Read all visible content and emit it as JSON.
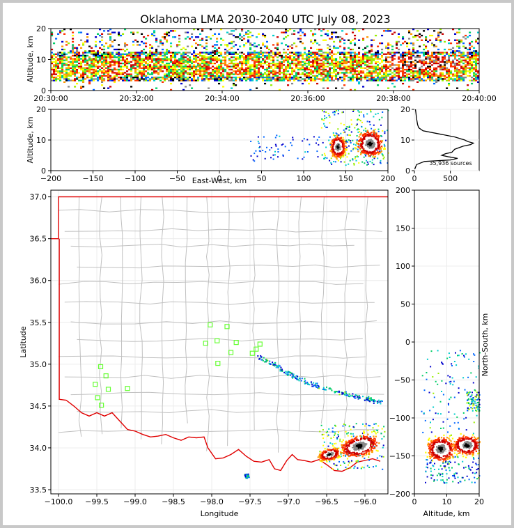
{
  "title": "Oklahoma LMA 2030-2040 UTC July 08, 2023",
  "colors": {
    "state_border": "#e00000",
    "county_lines": "#c0c0c0",
    "stations": "#66ff33",
    "source_scale": [
      "#0000cc",
      "#0066ff",
      "#00cccc",
      "#00cc66",
      "#99ee00",
      "#ffff00",
      "#ff9900",
      "#ff3300",
      "#cc0000",
      "#ffffff",
      "#888888",
      "#000000"
    ]
  },
  "chart_data": [
    {
      "id": "time_height",
      "type": "heatmap",
      "xlabel": "",
      "ylabel": "Altitude, km",
      "x_ticks": [
        "20:30:00",
        "20:32:00",
        "20:34:00",
        "20:36:00",
        "20:38:00",
        "20:40:00"
      ],
      "x_minutes": [
        0,
        2,
        4,
        6,
        8,
        10
      ],
      "xlim_minutes": [
        0,
        10
      ],
      "ylim": [
        0,
        20
      ],
      "y_ticks": [
        0,
        10,
        20
      ],
      "core_altitude_km": [
        3,
        12
      ],
      "sparse_to_km": 20
    },
    {
      "id": "ew_altitude",
      "type": "heatmap",
      "xlabel": "East-West, km",
      "ylabel": "Altitude, km",
      "xlim": [
        -200,
        200
      ],
      "x_ticks": [
        -200,
        -150,
        -100,
        -50,
        0,
        50,
        100,
        150,
        200
      ],
      "ylim": [
        0,
        20
      ],
      "y_ticks": [
        0,
        10,
        20
      ],
      "cores": [
        {
          "x": 178,
          "y": 9,
          "sx": 12,
          "sy": 3
        },
        {
          "x": 140,
          "y": 8,
          "sx": 7,
          "sy": 2.5
        }
      ],
      "trail_x_range": [
        35,
        120
      ]
    },
    {
      "id": "altitude_histogram",
      "type": "line",
      "annotation": "35,936 sources",
      "xlim": [
        0,
        900
      ],
      "x_ticks": [
        0,
        500
      ],
      "ylim": [
        0,
        20
      ],
      "y_ticks": [
        0,
        10,
        20
      ],
      "profile": [
        {
          "alt": 0.5,
          "count": 5
        },
        {
          "alt": 2,
          "count": 30
        },
        {
          "alt": 3,
          "count": 140
        },
        {
          "alt": 3.5,
          "count": 500
        },
        {
          "alt": 4,
          "count": 600
        },
        {
          "alt": 4.5,
          "count": 480
        },
        {
          "alt": 5,
          "count": 380
        },
        {
          "alt": 5.5,
          "count": 430
        },
        {
          "alt": 6,
          "count": 520
        },
        {
          "alt": 7,
          "count": 560
        },
        {
          "alt": 8,
          "count": 680
        },
        {
          "alt": 8.5,
          "count": 780
        },
        {
          "alt": 9,
          "count": 820
        },
        {
          "alt": 9.5,
          "count": 740
        },
        {
          "alt": 10,
          "count": 700
        },
        {
          "alt": 11,
          "count": 560
        },
        {
          "alt": 12,
          "count": 340
        },
        {
          "alt": 13,
          "count": 120
        },
        {
          "alt": 14,
          "count": 60
        },
        {
          "alt": 15,
          "count": 45
        },
        {
          "alt": 17,
          "count": 30
        },
        {
          "alt": 19,
          "count": 20
        },
        {
          "alt": 20,
          "count": 15
        }
      ]
    },
    {
      "id": "map",
      "type": "scatter",
      "xlabel": "Longitude",
      "ylabel": "Latitude",
      "xlim": [
        -100.1,
        -95.7
      ],
      "x_ticks": [
        -100.0,
        -99.5,
        -99.0,
        -98.5,
        -98.0,
        -97.5,
        -97.0,
        -96.5,
        -96.0
      ],
      "x_tick_labels": [
        "−100.0",
        "−99.5",
        "−99.0",
        "−98.5",
        "−98.0",
        "−97.5",
        "−97.0",
        "−96.5",
        "−96.0"
      ],
      "ylim": [
        33.45,
        37.08
      ],
      "y_ticks": [
        33.5,
        34.0,
        34.5,
        35.0,
        35.5,
        36.0,
        36.5,
        37.0
      ],
      "y_tick_labels": [
        "33.5",
        "34.0",
        "34.5",
        "35.0",
        "35.5",
        "36.0",
        "36.5",
        "37.0"
      ],
      "stations": [
        {
          "lon": -99.45,
          "lat": 34.97
        },
        {
          "lon": -99.38,
          "lat": 34.86
        },
        {
          "lon": -99.52,
          "lat": 34.76
        },
        {
          "lon": -99.35,
          "lat": 34.7
        },
        {
          "lon": -99.1,
          "lat": 34.71
        },
        {
          "lon": -99.49,
          "lat": 34.6
        },
        {
          "lon": -99.44,
          "lat": 34.51
        },
        {
          "lon": -98.02,
          "lat": 35.47
        },
        {
          "lon": -97.8,
          "lat": 35.45
        },
        {
          "lon": -98.08,
          "lat": 35.25
        },
        {
          "lon": -97.93,
          "lat": 35.28
        },
        {
          "lon": -97.68,
          "lat": 35.26
        },
        {
          "lon": -97.37,
          "lat": 35.24
        },
        {
          "lon": -97.42,
          "lat": 35.18
        },
        {
          "lon": -97.75,
          "lat": 35.14
        },
        {
          "lon": -97.47,
          "lat": 35.13
        },
        {
          "lon": -97.92,
          "lat": 35.01
        }
      ],
      "cores": [
        {
          "lon": -96.08,
          "lat": 34.03,
          "s": 0.13
        },
        {
          "lon": -96.47,
          "lat": 33.93,
          "s": 0.07
        }
      ],
      "trail": [
        [
          -97.4,
          35.1
        ],
        [
          -97.1,
          34.95
        ],
        [
          -96.8,
          34.8
        ],
        [
          -96.4,
          34.68
        ],
        [
          -96.0,
          34.6
        ],
        [
          -95.8,
          34.55
        ]
      ]
    },
    {
      "id": "ns_altitude",
      "type": "heatmap",
      "xlabel": "Altitude, km",
      "ylabel": "North-South, km",
      "xlim": [
        0,
        20
      ],
      "x_ticks": [
        0,
        10,
        20
      ],
      "ylim": [
        -200,
        200
      ],
      "y_ticks": [
        -200,
        -150,
        -100,
        -50,
        0,
        50,
        100,
        150,
        200
      ],
      "cores": [
        {
          "alt": 8,
          "y": -140,
          "sa": 3,
          "sy": 10
        },
        {
          "alt": 16,
          "y": -135,
          "sa": 3,
          "sy": 8
        }
      ]
    }
  ]
}
